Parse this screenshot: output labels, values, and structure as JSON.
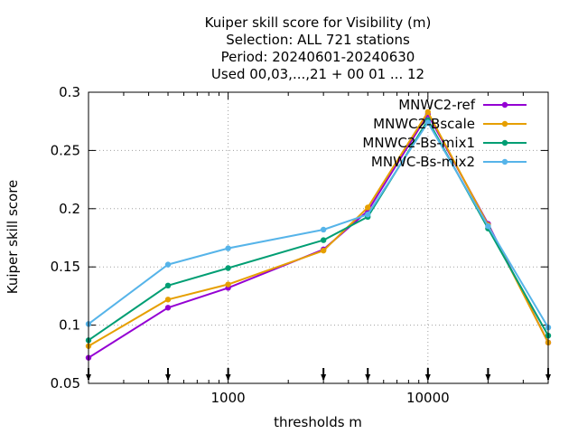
{
  "chart_data": {
    "type": "line",
    "title_lines": [
      "Kuiper skill score  for Visibility (m)",
      "Selection: ALL    721 stations",
      "Period: 20240601-20240630",
      "Used 00,03,...,21 + 00 01 ... 12"
    ],
    "xlabel": "thresholds m",
    "ylabel": "Kuiper skill score",
    "x_scale": "log",
    "xlim": [
      200,
      40000
    ],
    "ylim": [
      0.05,
      0.3
    ],
    "x_tick_values": [
      1000,
      10000
    ],
    "x_tick_labels": [
      "1000",
      "10000"
    ],
    "y_tick_values": [
      0.05,
      0.1,
      0.15,
      0.2,
      0.25,
      0.3
    ],
    "y_tick_labels": [
      "0.05",
      "0.1",
      "0.15",
      "0.2",
      "0.25",
      "0.3"
    ],
    "threshold_markers": [
      200,
      500,
      1000,
      3000,
      5000,
      10000,
      20000,
      40000
    ],
    "grid": true,
    "legend_position": "top-right",
    "x": [
      200,
      500,
      1000,
      3000,
      5000,
      10000,
      20000,
      40000
    ],
    "series": [
      {
        "name": "MNWC2-ref",
        "color": "#9400d3",
        "values": [
          0.072,
          0.115,
          0.132,
          0.165,
          0.198,
          0.281,
          0.187,
          0.085
        ]
      },
      {
        "name": "MNWC2-Bscale",
        "color": "#e69f00",
        "values": [
          0.082,
          0.122,
          0.135,
          0.164,
          0.201,
          0.283,
          0.186,
          0.085
        ]
      },
      {
        "name": "MNWC2-Bs-mix1",
        "color": "#009e73",
        "values": [
          0.087,
          0.134,
          0.149,
          0.173,
          0.193,
          0.276,
          0.183,
          0.091
        ]
      },
      {
        "name": "MNWC-Bs-mix2",
        "color": "#56b4e9",
        "values": [
          0.101,
          0.152,
          0.166,
          0.182,
          0.195,
          0.274,
          0.185,
          0.098
        ]
      }
    ]
  }
}
